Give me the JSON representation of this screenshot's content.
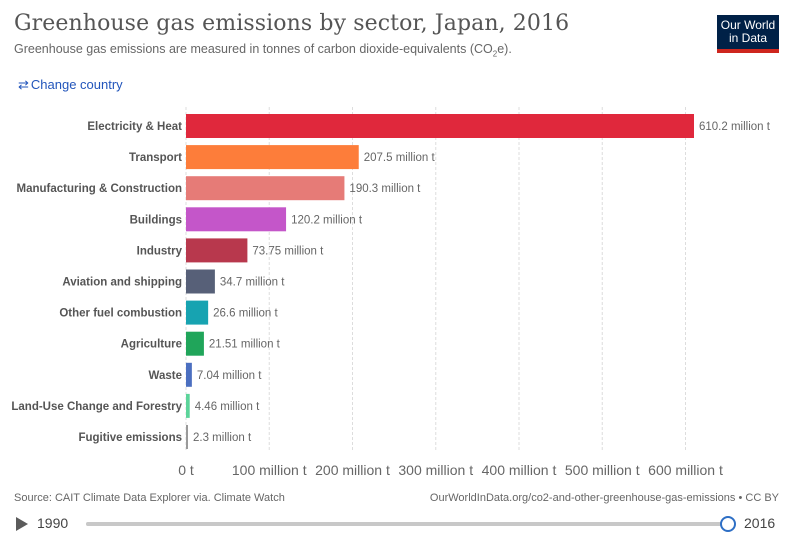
{
  "header": {
    "title": "Greenhouse gas emissions by sector, Japan, 2016",
    "subtitle_pre": "Greenhouse gas emissions are measured in tonnes of carbon dioxide-equivalents (CO",
    "subtitle_sub": "2",
    "subtitle_post": "e).",
    "logo_line1": "Our World",
    "logo_line2": "in Data",
    "change_country_icon": "swap-arrows-icon",
    "change_country_arrows": "⇄",
    "change_country_label": "Change country"
  },
  "chart_data": {
    "type": "bar",
    "orientation": "horizontal",
    "categories": [
      "Electricity & Heat",
      "Transport",
      "Manufacturing & Construction",
      "Buildings",
      "Industry",
      "Aviation and shipping",
      "Other fuel combustion",
      "Agriculture",
      "Waste",
      "Land-Use Change and Forestry",
      "Fugitive emissions"
    ],
    "values": [
      610.2,
      207.5,
      190.3,
      120.2,
      73.75,
      34.7,
      26.6,
      21.51,
      7.04,
      4.46,
      2.3
    ],
    "value_labels": [
      "610.2 million t",
      "207.5 million t",
      "190.3 million t",
      "120.2 million t",
      "73.75 million t",
      "34.7 million t",
      "26.6 million t",
      "21.51 million t",
      "7.04 million t",
      "4.46 million t",
      "2.3 million t"
    ],
    "colors": [
      "#e0283c",
      "#fd7d3a",
      "#e67b77",
      "#c456c9",
      "#b8384d",
      "#576078",
      "#17a3b1",
      "#20a55a",
      "#4b6fc0",
      "#5cd49a",
      "#9a9a9a"
    ],
    "xlim": [
      0,
      610.2
    ],
    "xticks": [
      0,
      100,
      200,
      300,
      400,
      500,
      600
    ],
    "xtick_labels": [
      "0 t",
      "100 million t",
      "200 million t",
      "300 million t",
      "400 million t",
      "500 million t",
      "600 million t"
    ],
    "grid": true
  },
  "footer": {
    "source": "Source: CAIT Climate Data Explorer via. Climate Watch",
    "credit": "OurWorldInData.org/co2-and-other-greenhouse-gas-emissions • CC BY"
  },
  "timeline": {
    "start_year": "1990",
    "end_year": "2016",
    "position": 1.0
  }
}
